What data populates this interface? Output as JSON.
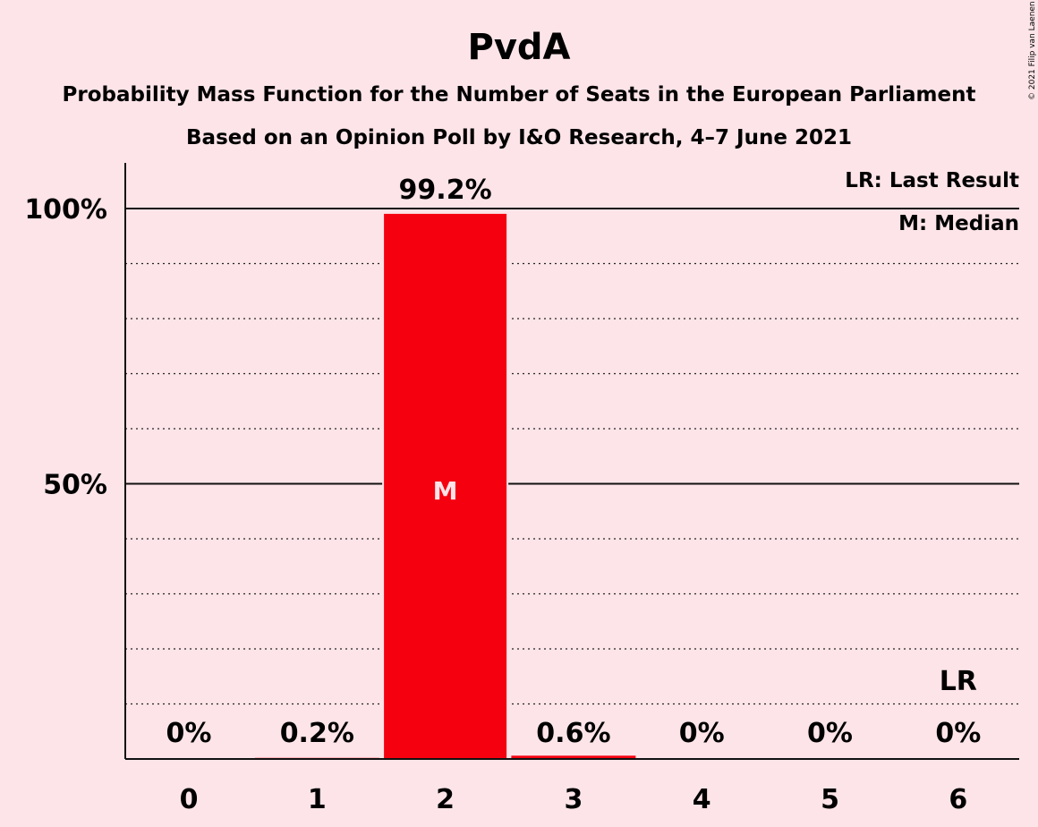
{
  "chart_data": {
    "type": "bar",
    "title": "PvdA",
    "subtitle": "Probability Mass Function for the Number of Seats in the European Parliament",
    "subtitle2": "Based on an Opinion Poll by I&O Research, 4–7 June 2021",
    "categories": [
      "0",
      "1",
      "2",
      "3",
      "4",
      "5",
      "6"
    ],
    "values": [
      0,
      0.2,
      99.2,
      0.6,
      0,
      0,
      0
    ],
    "data_labels": [
      "0%",
      "0.2%",
      "99.2%",
      "0.6%",
      "0%",
      "0%",
      "0%"
    ],
    "ylim": [
      0,
      100
    ],
    "yticks": [
      {
        "value": 50,
        "label": "50%"
      },
      {
        "value": 100,
        "label": "100%"
      }
    ],
    "minor_gridlines": [
      10,
      20,
      30,
      40,
      60,
      70,
      80,
      90
    ],
    "median_index": 2,
    "median_mark": "M",
    "last_result_index": 6,
    "last_result_mark": "LR",
    "legend": [
      "LR: Last Result",
      "M: Median"
    ],
    "legend_position": "top-right",
    "bar_color": "#F5000F",
    "copyright": "© 2021 Filip van Laenen"
  }
}
